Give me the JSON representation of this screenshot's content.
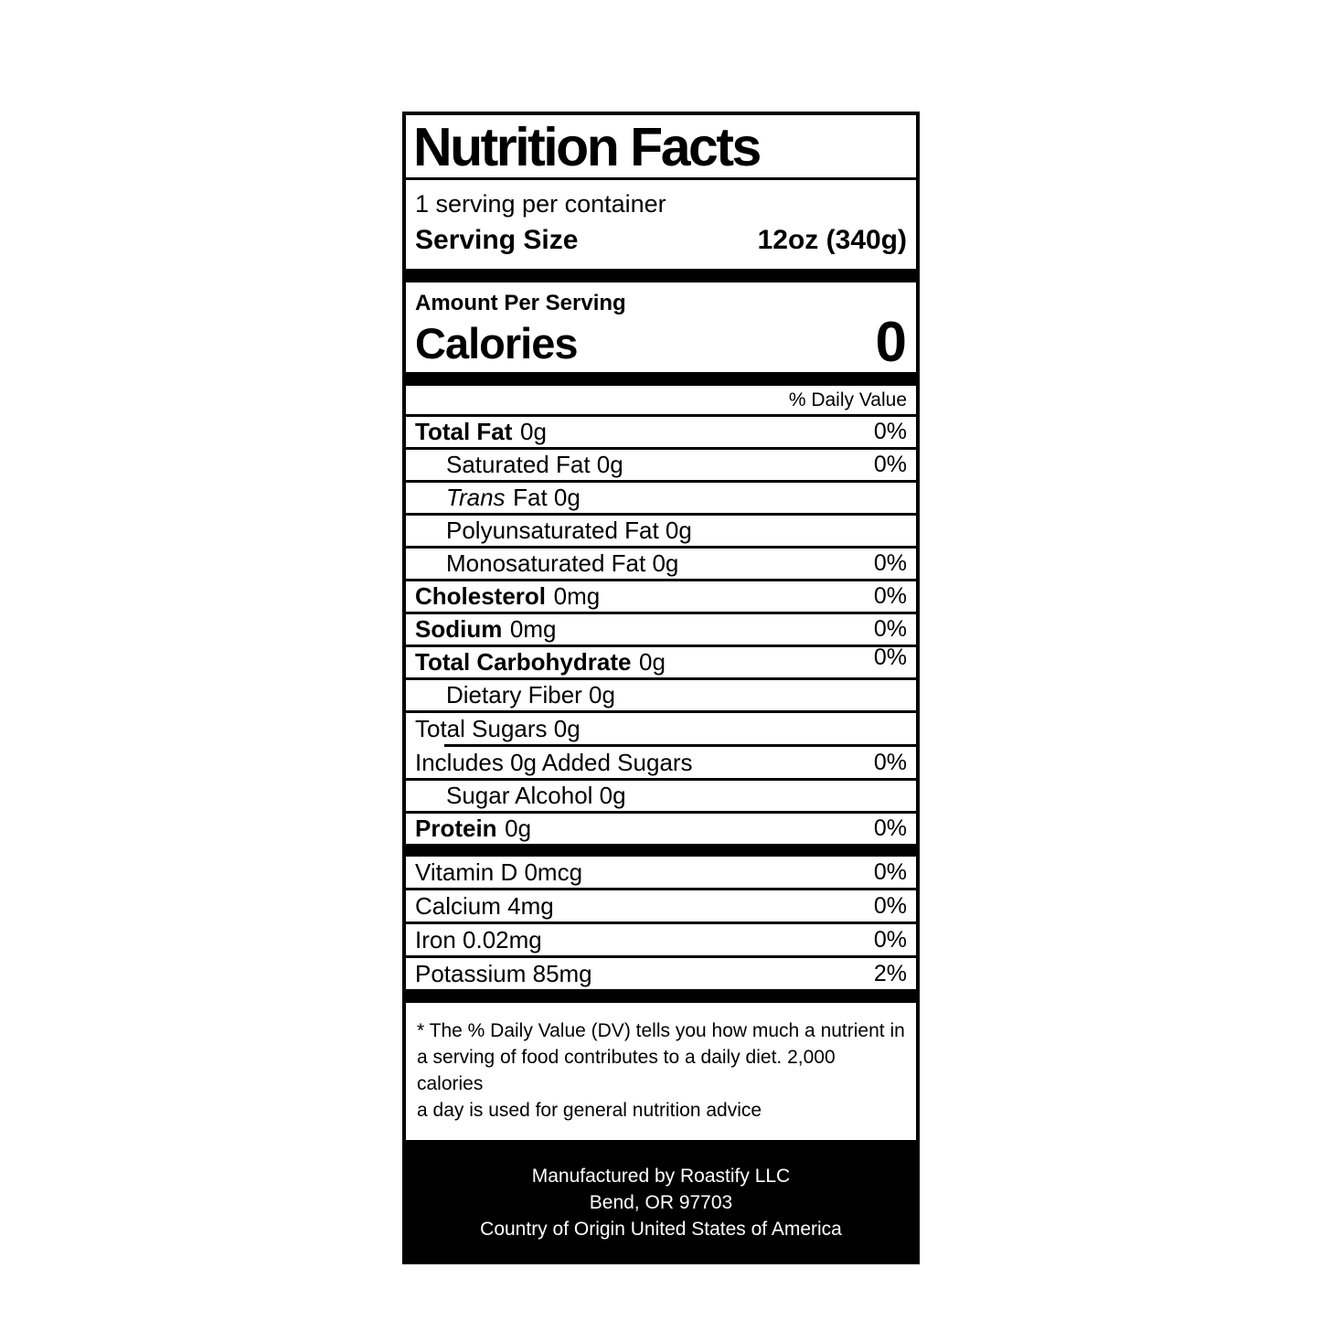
{
  "colors": {
    "ink": "#000000",
    "paper": "#ffffff"
  },
  "label": {
    "title": "Nutrition Facts",
    "servings_per_container": "1 serving per container",
    "serving_size_label": "Serving Size",
    "serving_size_value": "12oz (340g)",
    "amount_per_serving": "Amount Per Serving",
    "calories_label": "Calories",
    "calories_value": "0",
    "daily_value_header": "% Daily Value",
    "nutrients": {
      "total_fat": {
        "bold": "Total Fat",
        "rest": "0g",
        "dv": "0%"
      },
      "saturated_fat": {
        "plain": "Saturated Fat 0g",
        "dv": "0%"
      },
      "trans_fat": {
        "italic": "Trans",
        "plain": "Fat 0g"
      },
      "polyunsaturated_fat": {
        "plain": "Polyunsaturated Fat 0g"
      },
      "monosaturated_fat": {
        "plain": "Monosaturated Fat 0g",
        "dv": "0%"
      },
      "cholesterol": {
        "bold": "Cholesterol",
        "rest": "0mg",
        "dv": "0%"
      },
      "sodium": {
        "bold": "Sodium",
        "rest": "0mg",
        "dv": "0%"
      },
      "total_carbohydrate": {
        "bold": "Total Carbohydrate",
        "rest": "0g",
        "dv": "0%"
      },
      "dietary_fiber": {
        "plain": "Dietary Fiber 0g"
      },
      "total_sugars": {
        "plain": "Total Sugars 0g"
      },
      "added_sugars": {
        "plain": "Includes 0g Added Sugars",
        "dv": "0%"
      },
      "sugar_alcohol": {
        "plain": "Sugar Alcohol 0g"
      },
      "protein": {
        "bold": "Protein",
        "rest": "0g",
        "dv": "0%"
      }
    },
    "vitamins": {
      "vitamin_d": {
        "plain": "Vitamin D 0mcg",
        "dv": "0%"
      },
      "calcium": {
        "plain": "Calcium 4mg",
        "dv": "0%"
      },
      "iron": {
        "plain": "Iron 0.02mg",
        "dv": "0%"
      },
      "potassium": {
        "plain": "Potassium 85mg",
        "dv": "2%"
      }
    },
    "footnote_lines": [
      "* The % Daily Value (DV) tells you how much a nutrient in",
      "a serving of food contributes to a daily diet. 2,000 calories",
      "a day is used for general nutrition advice"
    ],
    "footer_lines": [
      "Manufactured by Roastify LLC",
      "Bend, OR 97703",
      "Country of Origin United States of America"
    ]
  }
}
